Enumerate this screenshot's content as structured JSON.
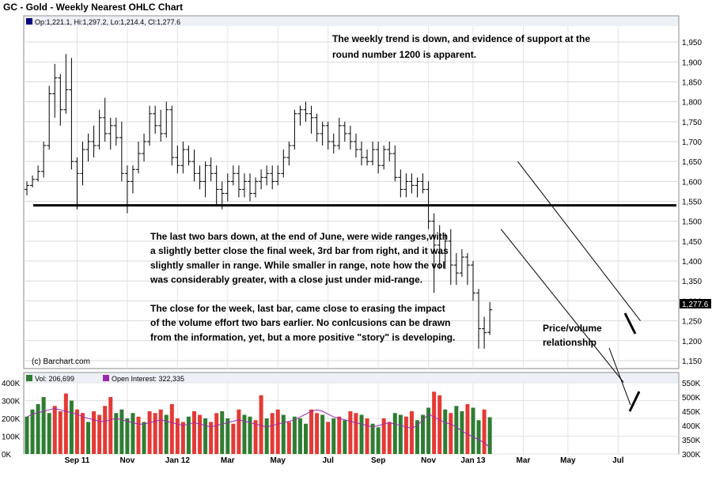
{
  "chart_data": {
    "type": "ohlc",
    "title": "GC - Gold - Weekly Nearest OHLC Chart",
    "legend_ohlc": "Op:1,221.1, Hi:1,297.2, Lo:1,214.4, Cl:1,277.6",
    "last_price_label": "1,277.6",
    "copyright": "(c) Barchart.com",
    "price_axis": {
      "range": [
        1130,
        1990
      ],
      "ticks": [
        1150,
        1200,
        1250,
        1300,
        1350,
        1400,
        1450,
        1500,
        1550,
        1600,
        1650,
        1700,
        1750,
        1800,
        1850,
        1900,
        1950
      ],
      "tick_labels": [
        "1,150",
        "1,200",
        "1,250",
        "1,300",
        "1,350",
        "1,400",
        "1,450",
        "1,500",
        "1,550",
        "1,600",
        "1,650",
        "1,700",
        "1,750",
        "1,800",
        "1,850",
        "1,900",
        "1,950"
      ]
    },
    "volume_axis": {
      "range": [
        0,
        400000
      ],
      "ticks": [
        0,
        100000,
        200000,
        300000,
        400000
      ],
      "tick_labels": [
        "0K",
        "100K",
        "200K",
        "300K",
        "400K"
      ]
    },
    "oi_axis": {
      "range": [
        300000,
        550000
      ],
      "ticks": [
        300000,
        350000,
        400000,
        450000,
        500000,
        550000
      ],
      "tick_labels": [
        "300K",
        "350K",
        "400K",
        "450K",
        "500K",
        "550K"
      ]
    },
    "x_labels": [
      {
        "label": "Sep 11",
        "week": 9
      },
      {
        "label": "Nov",
        "week": 18
      },
      {
        "label": "Jan 12",
        "week": 27
      },
      {
        "label": "Mar",
        "week": 36
      },
      {
        "label": "May",
        "week": 45
      },
      {
        "label": "Jul",
        "week": 54
      },
      {
        "label": "Sep",
        "week": 63
      },
      {
        "label": "Nov",
        "week": 72
      },
      {
        "label": "Jan 13",
        "week": 80
      },
      {
        "label": "Mar",
        "week": 89
      },
      {
        "label": "May",
        "week": 97
      },
      {
        "label": "Jul",
        "week": 106
      }
    ],
    "volume_legend": "Vol: 206,699",
    "oi_legend": "Open Interest: 322,335",
    "support_level": 1540,
    "trend_channel": {
      "upper": {
        "from": [
          88,
          1650
        ],
        "to": [
          110,
          1250
        ]
      },
      "lower": {
        "from": [
          85,
          1480
        ],
        "to": [
          107,
          1095
        ]
      }
    },
    "annotations": {
      "trend_note": [
        "The weekly trend is down, and evidence of support at the",
        "round number 1200 is apparent."
      ],
      "bars_note": [
        "The last two bars down, at the end of June, were wide ranges,with",
        "a slightly better close the final week, 3rd bar from right, and it was",
        "slightly smaller in range.  While smaller in range, note how the vol",
        "was considerably greater, with a close just under mid-range.",
        "",
        "The close for the week, last bar, came close to erasing the impact",
        "of the volume effort two bars earlier.  No conlcusions can be drawn",
        "from the information, yet, but a more positive \"story\" is developing."
      ],
      "pv_note": [
        "Price/volume",
        "relationship"
      ]
    },
    "ohlc": [
      [
        1580,
        1600,
        1565,
        1590
      ],
      [
        1590,
        1615,
        1585,
        1605
      ],
      [
        1605,
        1640,
        1600,
        1625
      ],
      [
        1625,
        1700,
        1610,
        1690
      ],
      [
        1690,
        1840,
        1680,
        1820
      ],
      [
        1820,
        1895,
        1760,
        1860
      ],
      [
        1860,
        1870,
        1740,
        1780
      ],
      [
        1780,
        1920,
        1770,
        1830
      ],
      [
        1830,
        1910,
        1630,
        1650
      ],
      [
        1650,
        1660,
        1530,
        1620
      ],
      [
        1620,
        1700,
        1590,
        1680
      ],
      [
        1680,
        1720,
        1650,
        1700
      ],
      [
        1700,
        1740,
        1660,
        1690
      ],
      [
        1690,
        1780,
        1680,
        1760
      ],
      [
        1760,
        1810,
        1700,
        1720
      ],
      [
        1720,
        1760,
        1680,
        1740
      ],
      [
        1740,
        1760,
        1690,
        1710
      ],
      [
        1710,
        1750,
        1600,
        1620
      ],
      [
        1620,
        1640,
        1520,
        1600
      ],
      [
        1600,
        1640,
        1570,
        1630
      ],
      [
        1630,
        1700,
        1620,
        1670
      ],
      [
        1670,
        1720,
        1650,
        1700
      ],
      [
        1700,
        1790,
        1690,
        1770
      ],
      [
        1770,
        1790,
        1720,
        1740
      ],
      [
        1740,
        1780,
        1700,
        1720
      ],
      [
        1720,
        1800,
        1710,
        1780
      ],
      [
        1780,
        1790,
        1640,
        1660
      ],
      [
        1660,
        1690,
        1620,
        1640
      ],
      [
        1640,
        1700,
        1620,
        1680
      ],
      [
        1680,
        1690,
        1640,
        1650
      ],
      [
        1650,
        1680,
        1600,
        1620
      ],
      [
        1620,
        1640,
        1580,
        1600
      ],
      [
        1600,
        1650,
        1560,
        1640
      ],
      [
        1640,
        1660,
        1600,
        1620
      ],
      [
        1620,
        1640,
        1540,
        1580
      ],
      [
        1580,
        1600,
        1530,
        1570
      ],
      [
        1570,
        1620,
        1550,
        1600
      ],
      [
        1600,
        1640,
        1590,
        1620
      ],
      [
        1620,
        1640,
        1560,
        1580
      ],
      [
        1580,
        1620,
        1560,
        1600
      ],
      [
        1600,
        1620,
        1550,
        1570
      ],
      [
        1570,
        1610,
        1560,
        1600
      ],
      [
        1600,
        1630,
        1580,
        1610
      ],
      [
        1610,
        1640,
        1590,
        1620
      ],
      [
        1620,
        1640,
        1580,
        1600
      ],
      [
        1600,
        1640,
        1590,
        1620
      ],
      [
        1620,
        1680,
        1610,
        1660
      ],
      [
        1660,
        1700,
        1640,
        1690
      ],
      [
        1690,
        1780,
        1680,
        1770
      ],
      [
        1770,
        1790,
        1740,
        1780
      ],
      [
        1780,
        1800,
        1750,
        1770
      ],
      [
        1770,
        1790,
        1720,
        1760
      ],
      [
        1760,
        1770,
        1700,
        1720
      ],
      [
        1720,
        1750,
        1690,
        1740
      ],
      [
        1740,
        1750,
        1680,
        1700
      ],
      [
        1700,
        1720,
        1670,
        1690
      ],
      [
        1690,
        1760,
        1680,
        1740
      ],
      [
        1740,
        1750,
        1700,
        1720
      ],
      [
        1720,
        1740,
        1680,
        1700
      ],
      [
        1700,
        1720,
        1660,
        1680
      ],
      [
        1680,
        1700,
        1640,
        1660
      ],
      [
        1660,
        1680,
        1640,
        1650
      ],
      [
        1650,
        1700,
        1640,
        1680
      ],
      [
        1680,
        1700,
        1620,
        1640
      ],
      [
        1640,
        1690,
        1630,
        1680
      ],
      [
        1680,
        1700,
        1650,
        1670
      ],
      [
        1670,
        1690,
        1600,
        1610
      ],
      [
        1610,
        1630,
        1560,
        1580
      ],
      [
        1580,
        1620,
        1560,
        1600
      ],
      [
        1600,
        1620,
        1570,
        1590
      ],
      [
        1590,
        1610,
        1560,
        1600
      ],
      [
        1600,
        1620,
        1570,
        1580
      ],
      [
        1580,
        1600,
        1480,
        1500
      ],
      [
        1500,
        1520,
        1320,
        1440
      ],
      [
        1440,
        1490,
        1380,
        1420
      ],
      [
        1420,
        1470,
        1380,
        1450
      ],
      [
        1450,
        1480,
        1340,
        1390
      ],
      [
        1390,
        1420,
        1340,
        1370
      ],
      [
        1370,
        1430,
        1360,
        1410
      ],
      [
        1410,
        1420,
        1340,
        1390
      ],
      [
        1390,
        1400,
        1300,
        1320
      ],
      [
        1320,
        1330,
        1180,
        1230
      ],
      [
        1230,
        1260,
        1180,
        1220
      ],
      [
        1221.1,
        1297.2,
        1214.4,
        1277.6
      ]
    ],
    "bar_dir": "uuuuuddduddudddduuuududdduddduddudduudduuddudduduuuddudududduduudduudduuudduduuduuduud",
    "volume": [
      210,
      250,
      280,
      320,
      230,
      270,
      240,
      340,
      300,
      250,
      230,
      180,
      240,
      220,
      270,
      320,
      230,
      250,
      200,
      230,
      210,
      180,
      240,
      230,
      250,
      220,
      280,
      200,
      180,
      210,
      240,
      220,
      200,
      180,
      230,
      240,
      200,
      170,
      250,
      220,
      210,
      190,
      330,
      200,
      230,
      250,
      220,
      180,
      210,
      200,
      170,
      250,
      230,
      220,
      180,
      200,
      210,
      190,
      240,
      230,
      220,
      200,
      170,
      150,
      200,
      180,
      230,
      220,
      210,
      240,
      190,
      220,
      260,
      350,
      330,
      250,
      230,
      270,
      240,
      280,
      260,
      190,
      250,
      206.699
    ],
    "open_interest": [
      430,
      440,
      445,
      450,
      455,
      460,
      455,
      450,
      445,
      440,
      430,
      425,
      420,
      415,
      415,
      420,
      425,
      420,
      415,
      410,
      405,
      405,
      410,
      415,
      420,
      415,
      410,
      405,
      400,
      405,
      410,
      405,
      400,
      395,
      400,
      405,
      410,
      415,
      420,
      415,
      410,
      405,
      400,
      395,
      400,
      405,
      410,
      415,
      420,
      430,
      440,
      450,
      455,
      450,
      440,
      430,
      425,
      420,
      415,
      410,
      405,
      400,
      395,
      400,
      405,
      410,
      405,
      400,
      395,
      390,
      400,
      420,
      440,
      430,
      420,
      410,
      405,
      395,
      380,
      370,
      360,
      350,
      340,
      322.335
    ]
  }
}
